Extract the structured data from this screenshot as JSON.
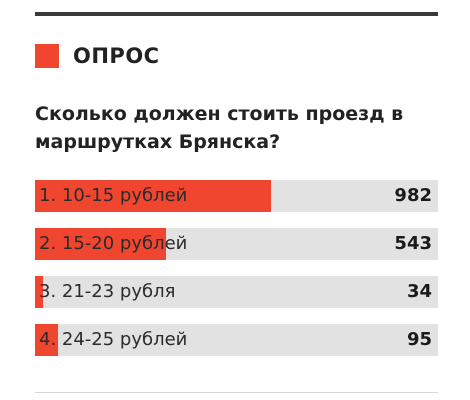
{
  "header": {
    "title": "ОПРОС",
    "accent_color": "#f0452e"
  },
  "question": "Сколько должен стоить проезд в маршрутках Брянска?",
  "options": [
    {
      "label": "1. 10-15 рублей",
      "count": "982",
      "fill_fraction": 0.585
    },
    {
      "label": "2. 15-20 рублей",
      "count": "543",
      "fill_fraction": 0.325
    },
    {
      "label": "3. 21-23 рубля",
      "count": "34",
      "fill_fraction": 0.02
    },
    {
      "label": "4. 24-25 рублей",
      "count": "95",
      "fill_fraction": 0.057
    }
  ],
  "colors": {
    "bar_background": "#e2e2e2",
    "bar_fill": "#f0452e",
    "rule": "#3a3a3a"
  }
}
